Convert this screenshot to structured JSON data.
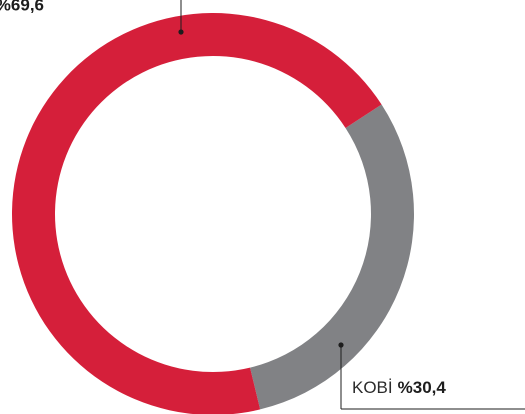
{
  "chart_data": {
    "type": "donut",
    "categories": [
      null,
      "KOBİ"
    ],
    "values": [
      69.6,
      30.4
    ],
    "value_labels": [
      "%69,6",
      "%30,4"
    ],
    "colors": [
      "#d51f3a",
      "#818285"
    ]
  }
}
